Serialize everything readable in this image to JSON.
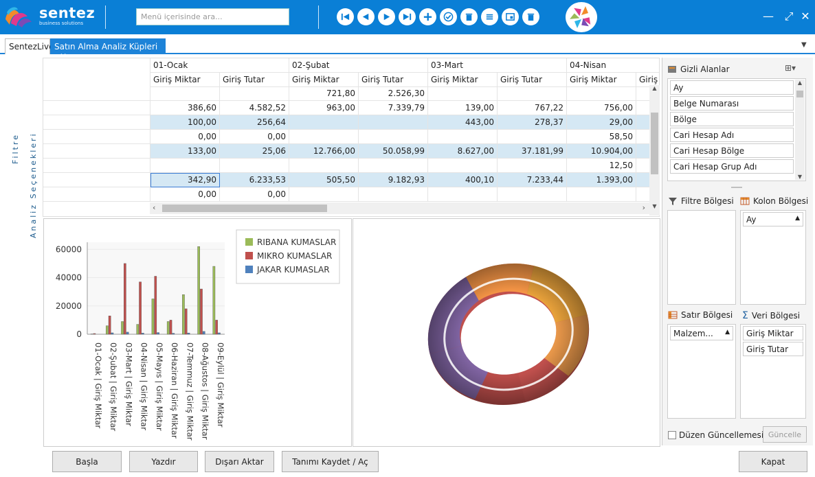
{
  "app": {
    "brand": "sentez",
    "brand_sub": "business solutions",
    "search_placeholder": "Menü içerisinde ara..."
  },
  "toolbar": {
    "icons": [
      "first-icon",
      "previous-icon",
      "play-icon",
      "last-icon",
      "add-icon",
      "check-icon",
      "delete-icon",
      "list-icon",
      "preview-icon",
      "trash-icon"
    ]
  },
  "window": {
    "minimize": "—",
    "restore": "⤢",
    "close": "✕"
  },
  "tabs": [
    {
      "label": "SentezLive"
    },
    {
      "label": "Satın Alma Analiz Küpleri",
      "close": "✕"
    }
  ],
  "tab_menu": "▼",
  "side": {
    "filter": "Filtre",
    "analysis": "Analiz Seçenekleri"
  },
  "grid": {
    "months": [
      "01-Ocak",
      "02-Şubat",
      "03-Mart",
      "04-Nisan"
    ],
    "subheaders": [
      "Giriş Miktar",
      "Giriş Tutar",
      "Giriş Miktar",
      "Giriş Tutar",
      "Giriş Miktar",
      "Giriş Tutar",
      "Giriş Miktar",
      "Giriş Tutar"
    ],
    "rows": [
      {
        "hl": false,
        "cells": [
          "",
          "",
          "721,80",
          "2.526,30",
          "",
          "",
          ""
        ]
      },
      {
        "hl": false,
        "cells": [
          "386,60",
          "4.582,52",
          "963,00",
          "7.339,79",
          "139,00",
          "767,22",
          "756,00"
        ]
      },
      {
        "hl": true,
        "cells": [
          "100,00",
          "256,64",
          "",
          "",
          "443,00",
          "278,37",
          "29,00"
        ]
      },
      {
        "hl": false,
        "cells": [
          "0,00",
          "0,00",
          "",
          "",
          "",
          "",
          "58,50"
        ]
      },
      {
        "hl": true,
        "cells": [
          "133,00",
          "25,06",
          "12.766,00",
          "50.058,99",
          "8.627,00",
          "37.181,99",
          "10.904,00"
        ]
      },
      {
        "hl": false,
        "cells": [
          "",
          "",
          "",
          "",
          "",
          "",
          "12,50"
        ]
      },
      {
        "hl": true,
        "cells": [
          "342,90",
          "6.233,53",
          "505,50",
          "9.182,93",
          "400,10",
          "7.233,44",
          "1.393,00"
        ]
      },
      {
        "hl": false,
        "cells": [
          "0,00",
          "0,00",
          "",
          "",
          "",
          "",
          ""
        ]
      }
    ]
  },
  "chart_data": {
    "type": "bar",
    "categories": [
      "01-Ocak | Giriş Miktar",
      "02-Şubat | Giriş Miktar",
      "03-Mart | Giriş Miktar",
      "04-Nisan | Giriş Miktar",
      "05-Mayıs | Giriş Miktar",
      "06-Haziran | Giriş Miktar",
      "07-Temmuz | Giriş Miktar",
      "08-Ağustos | Giriş Miktar",
      "09-Eylül | Giriş Miktar"
    ],
    "series": [
      {
        "name": "RIBANA KUMASLAR",
        "color": "#9bbb59",
        "values": [
          200,
          6000,
          9000,
          7000,
          25000,
          9000,
          28000,
          62000,
          48000
        ]
      },
      {
        "name": "MIKRO KUMASLAR",
        "color": "#c0504d",
        "values": [
          500,
          13000,
          50000,
          37000,
          41000,
          10000,
          18000,
          32000,
          10000
        ]
      },
      {
        "name": "JAKAR KUMASLAR",
        "color": "#4f81bd",
        "values": [
          0,
          1000,
          1500,
          800,
          1200,
          700,
          900,
          2000,
          1000
        ]
      }
    ],
    "yticks": [
      "60000",
      "40000",
      "20000",
      "0"
    ],
    "ylim": [
      0,
      65000
    ]
  },
  "right": {
    "hidden_title": "Gizli Alanlar",
    "hidden_fields": [
      "Ay",
      "Belge Numarası",
      "Bölge",
      "Cari Hesap Adı",
      "Cari Hesap Bölge",
      "Cari Hesap Grup Adı"
    ],
    "filter_title": "Filtre Bölgesi",
    "column_title": "Kolon Bölgesi",
    "column_items": [
      "Ay"
    ],
    "row_title": "Satır Bölgesi",
    "row_items": [
      "Malzem..."
    ],
    "data_title": "Veri Bölgesi",
    "data_items": [
      "Giriş Miktar",
      "Giriş Tutar"
    ],
    "defer_label": "Düzen Güncellemesini Ertele",
    "update_label": "Güncelle"
  },
  "buttons": {
    "start": "Başla",
    "print": "Yazdır",
    "export": "Dışarı Aktar",
    "save": "Tanımı Kaydet / Aç",
    "close": "Kapat"
  }
}
